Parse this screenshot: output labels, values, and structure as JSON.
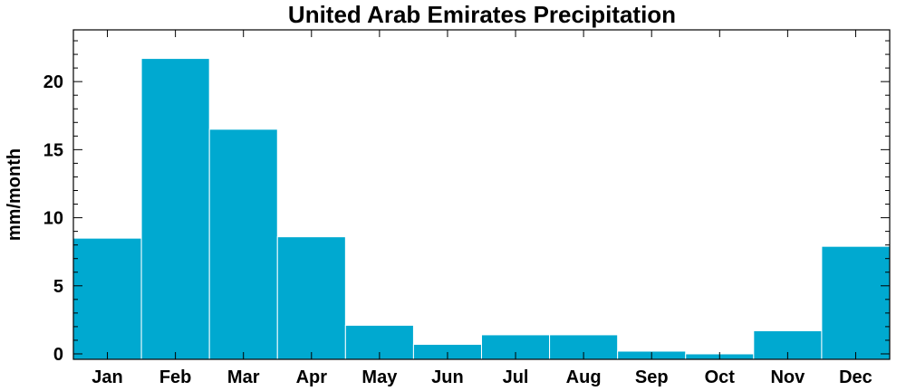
{
  "chart_data": {
    "type": "bar",
    "title": "United Arab Emirates Precipitation",
    "xlabel": "",
    "ylabel": "mm/month",
    "categories": [
      "Jan",
      "Feb",
      "Mar",
      "Apr",
      "May",
      "Jun",
      "Jul",
      "Aug",
      "Sep",
      "Oct",
      "Nov",
      "Dec"
    ],
    "values": [
      8.5,
      21.7,
      16.5,
      8.6,
      2.1,
      0.7,
      1.4,
      1.4,
      0.2,
      0.0,
      1.7,
      7.9
    ],
    "ylim": [
      -0.4,
      23.8
    ],
    "yticks": [
      0,
      5,
      10,
      15,
      20
    ],
    "grid": false,
    "bar_color": "#00a9d0"
  }
}
